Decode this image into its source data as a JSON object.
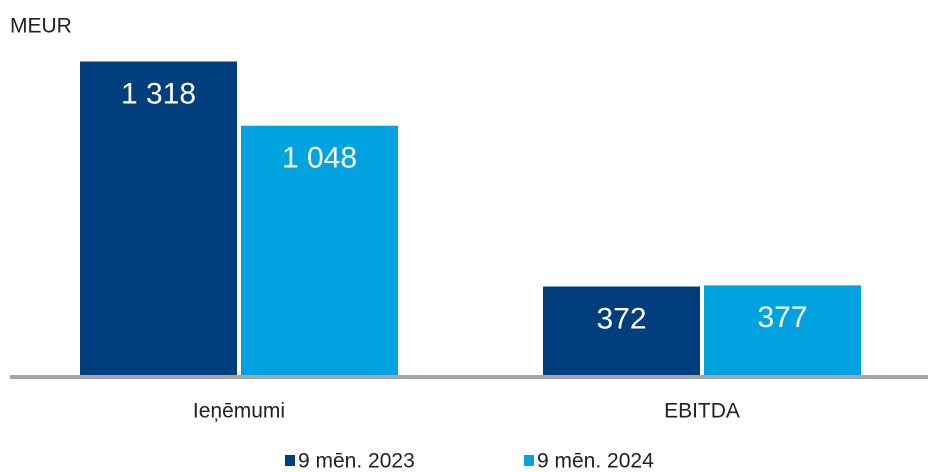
{
  "chart_data": {
    "type": "bar",
    "y_axis_label": "MEUR",
    "categories": [
      "Ieņēmumi",
      "EBITDA"
    ],
    "series": [
      {
        "name": "9 mēn. 2023",
        "color": "#003e7e",
        "values": [
          1318,
          372
        ],
        "value_labels": [
          "1 318",
          "372"
        ]
      },
      {
        "name": "9 mēn. 2024",
        "color": "#00a3e0",
        "values": [
          1048,
          377
        ],
        "value_labels": [
          "1 048",
          "377"
        ]
      }
    ],
    "ylim": [
      0,
      1400
    ]
  }
}
